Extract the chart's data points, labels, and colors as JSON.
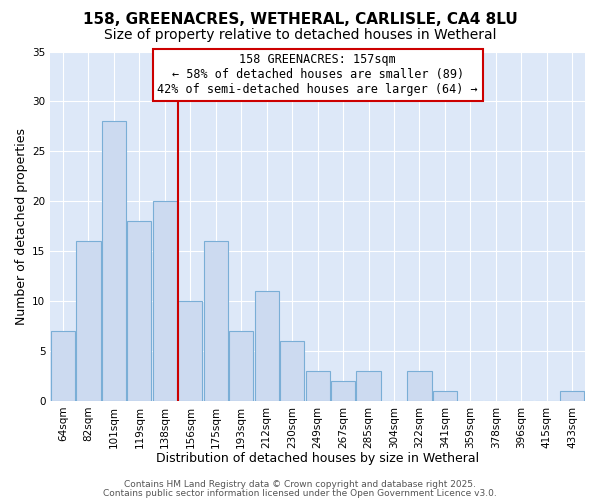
{
  "title": "158, GREENACRES, WETHERAL, CARLISLE, CA4 8LU",
  "subtitle": "Size of property relative to detached houses in Wetheral",
  "xlabel": "Distribution of detached houses by size in Wetheral",
  "ylabel": "Number of detached properties",
  "bar_labels": [
    "64sqm",
    "82sqm",
    "101sqm",
    "119sqm",
    "138sqm",
    "156sqm",
    "175sqm",
    "193sqm",
    "212sqm",
    "230sqm",
    "249sqm",
    "267sqm",
    "285sqm",
    "304sqm",
    "322sqm",
    "341sqm",
    "359sqm",
    "378sqm",
    "396sqm",
    "415sqm",
    "433sqm"
  ],
  "bar_values": [
    7,
    16,
    28,
    18,
    20,
    10,
    16,
    7,
    11,
    6,
    3,
    2,
    3,
    0,
    3,
    1,
    0,
    0,
    0,
    0,
    1
  ],
  "bar_color": "#ccdaf0",
  "bar_edgecolor": "#7aaed6",
  "vline_color": "#cc0000",
  "vline_x": 4.5,
  "annotation_text": "158 GREENACRES: 157sqm\n← 58% of detached houses are smaller (89)\n42% of semi-detached houses are larger (64) →",
  "annotation_box_edgecolor": "#cc0000",
  "annotation_box_facecolor": "white",
  "ylim": [
    0,
    35
  ],
  "yticks": [
    0,
    5,
    10,
    15,
    20,
    25,
    30,
    35
  ],
  "footer1": "Contains HM Land Registry data © Crown copyright and database right 2025.",
  "footer2": "Contains public sector information licensed under the Open Government Licence v3.0.",
  "bg_color": "#dde8f8",
  "fig_bg_color": "#ffffff",
  "title_fontsize": 11,
  "subtitle_fontsize": 10,
  "axis_label_fontsize": 9,
  "tick_fontsize": 7.5,
  "annotation_fontsize": 8.5,
  "footer_fontsize": 6.5
}
